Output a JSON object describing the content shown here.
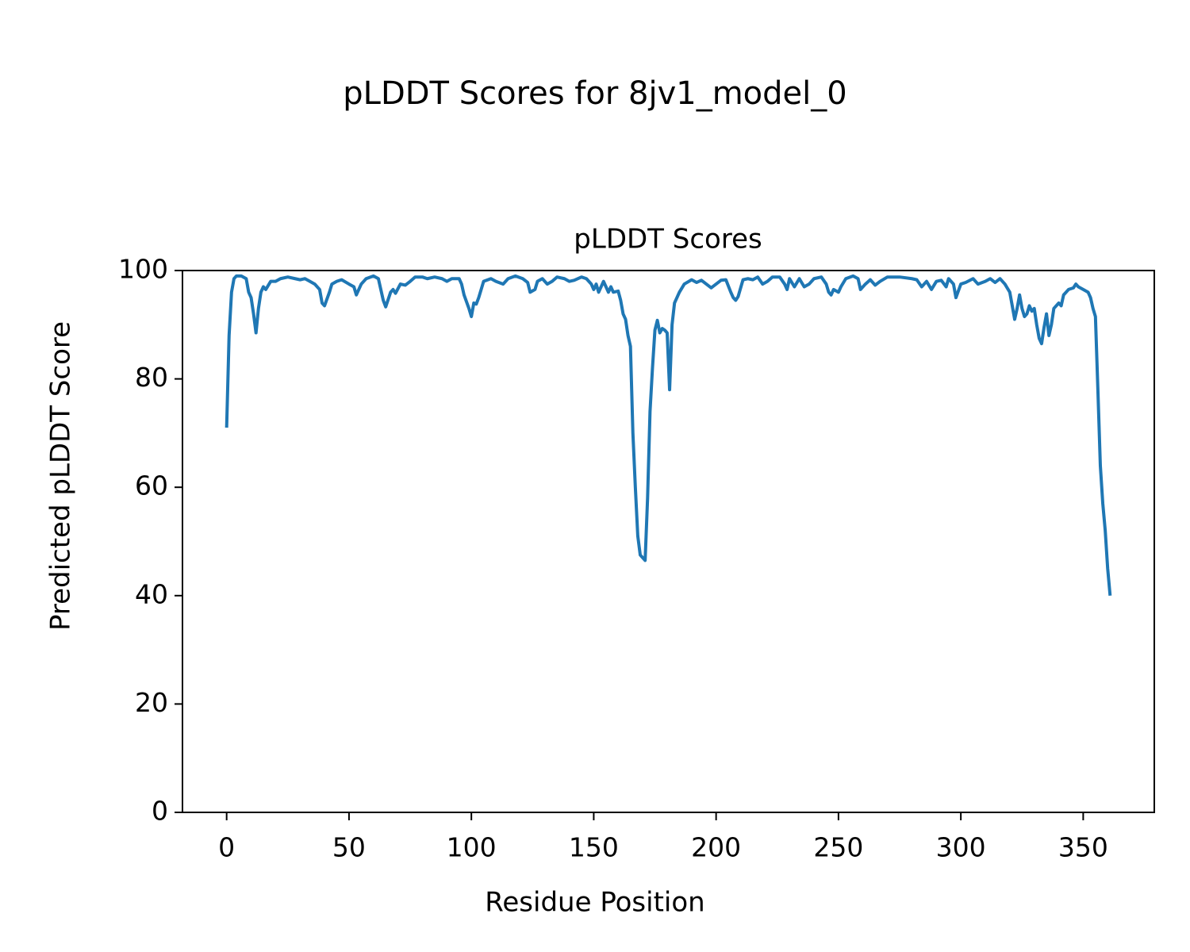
{
  "chart_data": {
    "type": "line",
    "suptitle": "pLDDT Scores for 8jv1_model_0",
    "title": "pLDDT Scores",
    "xlabel": "Residue Position",
    "ylabel": "Predicted pLDDT Score",
    "xlim": [
      -18.05,
      379.05
    ],
    "ylim": [
      0,
      100
    ],
    "xticks": [
      0,
      50,
      100,
      150,
      200,
      250,
      300,
      350
    ],
    "yticks": [
      0,
      20,
      40,
      60,
      80,
      100
    ],
    "grid": false,
    "x": [
      0,
      1,
      2,
      3,
      4,
      6,
      8,
      9,
      10,
      11,
      12,
      13,
      14,
      15,
      16,
      18,
      20,
      22,
      25,
      28,
      30,
      32,
      34,
      36,
      38,
      39,
      40,
      42,
      43,
      45,
      47,
      50,
      52,
      53,
      55,
      57,
      60,
      62,
      63,
      64,
      65,
      67,
      68,
      69,
      71,
      73,
      75,
      77,
      80,
      82,
      85,
      88,
      90,
      92,
      95,
      96,
      97,
      99,
      100,
      101,
      102,
      103,
      105,
      108,
      110,
      113,
      115,
      118,
      121,
      123,
      124,
      126,
      127,
      129,
      131,
      133,
      135,
      138,
      140,
      142,
      145,
      147,
      149,
      150,
      151,
      152,
      154,
      155,
      156,
      157,
      158,
      160,
      161,
      162,
      163,
      164,
      165,
      166,
      167,
      168,
      169,
      170,
      171,
      172,
      173,
      174,
      175,
      176,
      177,
      178,
      179,
      180,
      181,
      182,
      183,
      185,
      187,
      190,
      192,
      194,
      196,
      198,
      200,
      202,
      204,
      206,
      207,
      208,
      209,
      211,
      213,
      215,
      217,
      219,
      221,
      223,
      226,
      228,
      229,
      230,
      232,
      234,
      236,
      238,
      240,
      243,
      245,
      246,
      247,
      248,
      250,
      251,
      253,
      256,
      258,
      259,
      261,
      263,
      265,
      267,
      270,
      275,
      280,
      282,
      284,
      286,
      288,
      290,
      292,
      294,
      295,
      297,
      298,
      300,
      302,
      305,
      307,
      310,
      312,
      314,
      316,
      318,
      320,
      321,
      322,
      323,
      324,
      325,
      326,
      327,
      328,
      329,
      330,
      331,
      332,
      333,
      334,
      335,
      336,
      337,
      338,
      340,
      341,
      342,
      344,
      346,
      347,
      348,
      350,
      352,
      353,
      354,
      355,
      356,
      357,
      358,
      359,
      360,
      361
    ],
    "series": [
      {
        "name": "pLDDT",
        "color": "#1f77b4",
        "values": [
          71,
          88,
          96,
          98.5,
          99,
          99,
          98.5,
          96,
          95,
          92,
          88.5,
          93,
          96,
          97,
          96.5,
          98,
          98,
          98.5,
          98.8,
          98.5,
          98.3,
          98.5,
          98,
          97.5,
          96.5,
          94,
          93.5,
          96,
          97.5,
          98,
          98.3,
          97.5,
          97,
          95.5,
          97.5,
          98.5,
          99,
          98.5,
          96.5,
          94.5,
          93.3,
          96,
          96.5,
          95.8,
          97.5,
          97.3,
          98,
          98.8,
          98.8,
          98.5,
          98.8,
          98.5,
          98,
          98.5,
          98.5,
          97.5,
          95.5,
          93,
          91.5,
          94,
          93.8,
          95,
          98,
          98.5,
          98,
          97.5,
          98.5,
          99,
          98.5,
          97.8,
          96,
          96.5,
          98,
          98.5,
          97.5,
          98,
          98.8,
          98.5,
          98,
          98.2,
          98.8,
          98.5,
          97.5,
          96.5,
          97.5,
          96,
          98,
          97,
          96,
          97,
          96,
          96.2,
          94.5,
          92,
          91,
          88,
          86,
          70,
          60,
          51,
          47.5,
          47,
          46.5,
          58,
          74,
          82,
          89,
          90.8,
          88.5,
          89.3,
          89,
          88.5,
          78,
          90,
          94,
          96,
          97.5,
          98.3,
          97.8,
          98.2,
          97.5,
          96.8,
          97.5,
          98.2,
          98.3,
          96,
          95,
          94.5,
          95.2,
          98.3,
          98.5,
          98.3,
          98.8,
          97.5,
          98,
          98.8,
          98.8,
          97.5,
          96.5,
          98.5,
          97,
          98.5,
          97,
          97.5,
          98.5,
          98.8,
          97.5,
          96,
          95.5,
          96.5,
          96,
          97,
          98.5,
          99,
          98.5,
          96.5,
          97.5,
          98.3,
          97.3,
          98,
          98.8,
          98.8,
          98.5,
          98.3,
          97,
          98,
          96.5,
          98,
          98.2,
          97,
          98.5,
          97.5,
          95,
          97.5,
          97.8,
          98.5,
          97.5,
          98,
          98.5,
          97.8,
          98.5,
          97.5,
          96,
          93.5,
          91,
          93,
          95.5,
          93,
          91.5,
          92,
          93.5,
          92.5,
          93,
          90,
          87.5,
          86.5,
          89.5,
          92,
          88,
          90,
          93,
          94,
          93.5,
          95.5,
          96.5,
          96.8,
          97.5,
          97,
          96.5,
          96,
          95,
          93,
          91.5,
          78,
          64,
          57,
          52,
          45,
          40
        ]
      }
    ]
  }
}
